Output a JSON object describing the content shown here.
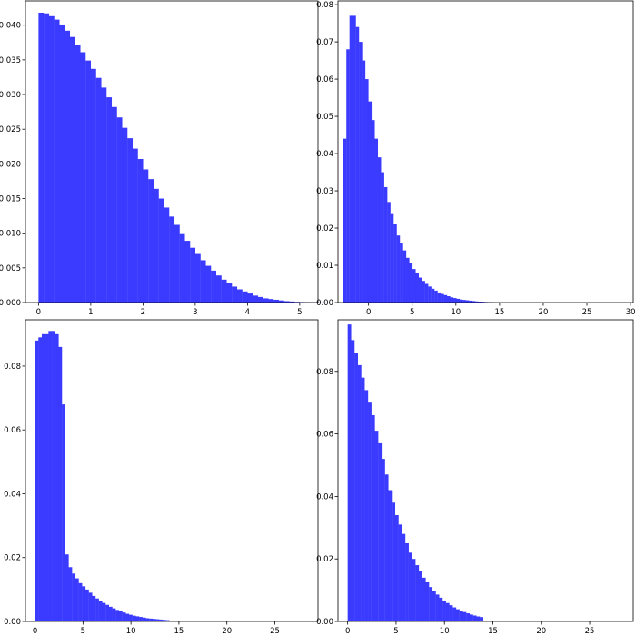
{
  "bar_color": "#3b3bff",
  "chart_data": [
    {
      "type": "bar",
      "title": "",
      "xlabel": "",
      "ylabel": "",
      "xlim": [
        -0.25,
        5.35
      ],
      "ylim": [
        0,
        0.0435
      ],
      "xticks": [
        0,
        1,
        2,
        3,
        4,
        5
      ],
      "xtick_labels": [
        "0",
        "1",
        "2",
        "3",
        "4",
        "5"
      ],
      "yticks": [
        0,
        0.005,
        0.01,
        0.015,
        0.02,
        0.025,
        0.03,
        0.035,
        0.04
      ],
      "ytick_labels": [
        "0.000",
        "0.005",
        "0.010",
        "0.015",
        "0.020",
        "0.025",
        "0.030",
        "0.035",
        "0.040"
      ],
      "bin_start": 0.0,
      "bin_width": 0.1,
      "values": [
        0.0418,
        0.0417,
        0.0413,
        0.0408,
        0.0401,
        0.0392,
        0.0383,
        0.0372,
        0.0361,
        0.0349,
        0.0337,
        0.0324,
        0.031,
        0.0296,
        0.0282,
        0.0267,
        0.0252,
        0.0237,
        0.0222,
        0.0207,
        0.0192,
        0.0178,
        0.0164,
        0.015,
        0.0137,
        0.0124,
        0.0112,
        0.01,
        0.0089,
        0.0079,
        0.007,
        0.0061,
        0.0053,
        0.0046,
        0.0039,
        0.0033,
        0.0028,
        0.0023,
        0.0019,
        0.0016,
        0.0013,
        0.001,
        0.0008,
        0.0006,
        0.0005,
        0.0004,
        0.0003,
        0.0002,
        0.00015,
        0.0001,
        7e-05,
        5e-05,
        3e-05,
        2e-05,
        1e-05
      ]
    },
    {
      "type": "bar",
      "title": "",
      "xlabel": "",
      "ylabel": "",
      "xlim": [
        -3.5,
        30.3
      ],
      "ylim": [
        0,
        0.081
      ],
      "xticks": [
        0,
        5,
        10,
        15,
        20,
        25,
        30
      ],
      "xtick_labels": [
        "0",
        "5",
        "10",
        "15",
        "20",
        "25",
        "30"
      ],
      "yticks": [
        0,
        0.01,
        0.02,
        0.03,
        0.04,
        0.05,
        0.06,
        0.07,
        0.08
      ],
      "ytick_labels": [
        "0.00",
        "0.01",
        "0.02",
        "0.03",
        "0.04",
        "0.05",
        "0.06",
        "0.07",
        "0.08"
      ],
      "bin_start": -2.9,
      "bin_width": 0.36,
      "values": [
        0.044,
        0.068,
        0.077,
        0.077,
        0.074,
        0.07,
        0.065,
        0.06,
        0.054,
        0.049,
        0.044,
        0.039,
        0.035,
        0.031,
        0.027,
        0.024,
        0.021,
        0.018,
        0.016,
        0.014,
        0.012,
        0.0105,
        0.009,
        0.0078,
        0.0067,
        0.0058,
        0.005,
        0.0043,
        0.0037,
        0.0032,
        0.0027,
        0.0023,
        0.002,
        0.0017,
        0.0014,
        0.0012,
        0.001,
        0.0008,
        0.0007,
        0.0006,
        0.0005,
        0.0004,
        0.0003,
        0.00025,
        0.0002,
        0.00015,
        0.0001,
        8e-05
      ]
    },
    {
      "type": "bar",
      "title": "",
      "xlabel": "",
      "ylabel": "",
      "xlim": [
        -1.0,
        29.5
      ],
      "ylim": [
        0,
        0.0945
      ],
      "xticks": [
        0,
        5,
        10,
        15,
        20,
        25
      ],
      "xtick_labels": [
        "0",
        "5",
        "10",
        "15",
        "20",
        "25"
      ],
      "yticks": [
        0,
        0.02,
        0.04,
        0.06,
        0.08
      ],
      "ytick_labels": [
        "0.00",
        "0.02",
        "0.04",
        "0.06",
        "0.08"
      ],
      "bin_start": 0.0,
      "bin_width": 0.35,
      "values": [
        0.088,
        0.089,
        0.09,
        0.09,
        0.091,
        0.091,
        0.09,
        0.086,
        0.068,
        0.021,
        0.017,
        0.015,
        0.0135,
        0.012,
        0.011,
        0.01,
        0.009,
        0.008,
        0.0072,
        0.0065,
        0.0058,
        0.0052,
        0.0046,
        0.0041,
        0.0036,
        0.0032,
        0.0028,
        0.0024,
        0.0021,
        0.0018,
        0.0016,
        0.0014,
        0.0012,
        0.001,
        0.0009,
        0.0008,
        0.0007,
        0.0006,
        0.0005,
        0.0004
      ]
    },
    {
      "type": "bar",
      "title": "",
      "xlabel": "",
      "ylabel": "",
      "xlim": [
        -1.0,
        29.5
      ],
      "ylim": [
        0,
        0.0965
      ],
      "xticks": [
        0,
        5,
        10,
        15,
        20,
        25
      ],
      "xtick_labels": [
        "0",
        "5",
        "10",
        "15",
        "20",
        "25"
      ],
      "yticks": [
        0,
        0.02,
        0.04,
        0.06,
        0.08
      ],
      "ytick_labels": [
        "0.00",
        "0.02",
        "0.04",
        "0.06",
        "0.08"
      ],
      "bin_start": 0.0,
      "bin_width": 0.35,
      "values": [
        0.095,
        0.09,
        0.086,
        0.082,
        0.078,
        0.074,
        0.07,
        0.066,
        0.061,
        0.057,
        0.052,
        0.047,
        0.042,
        0.038,
        0.034,
        0.031,
        0.028,
        0.025,
        0.022,
        0.02,
        0.018,
        0.016,
        0.014,
        0.0125,
        0.011,
        0.0098,
        0.0086,
        0.0076,
        0.0067,
        0.0059,
        0.0052,
        0.0045,
        0.0039,
        0.0034,
        0.003,
        0.0026,
        0.0022,
        0.0019,
        0.0016,
        0.0014
      ]
    }
  ]
}
